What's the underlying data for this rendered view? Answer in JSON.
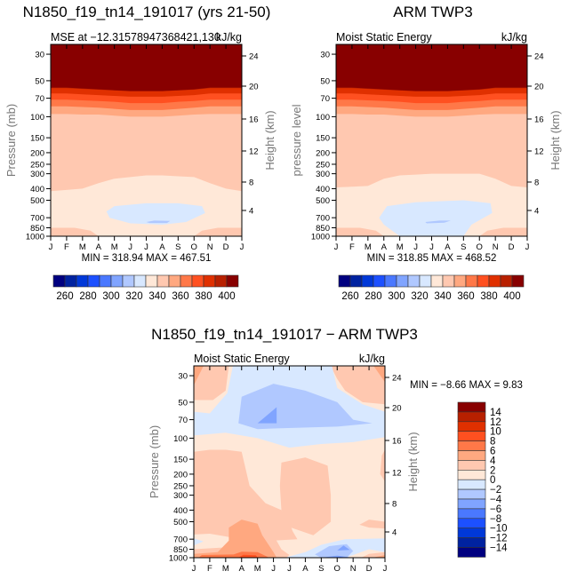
{
  "colors": [
    "#000080",
    "#0022a0",
    "#0038d8",
    "#1c50ff",
    "#4a78ff",
    "#80a4ff",
    "#b0c8ff",
    "#d8e8ff",
    "#ffe8d8",
    "#ffc8b0",
    "#ffa880",
    "#ff7848",
    "#ff5020",
    "#e03000",
    "#b82000",
    "#880000"
  ],
  "chart_data": [
    {
      "type": "heatmap",
      "title": "N1850_f19_tn14_191017 (yrs 21-50)",
      "subtitle_left": "MSE at −12.31578947368421,130",
      "subtitle_right": "kJ/kg",
      "ylabel": "Pressure (mb)",
      "ylabel_right": "Height (km)",
      "x_ticks": [
        "J",
        "F",
        "M",
        "A",
        "M",
        "J",
        "J",
        "A",
        "S",
        "O",
        "N",
        "D",
        "J"
      ],
      "y_ticks": [
        30,
        50,
        70,
        100,
        150,
        200,
        250,
        300,
        400,
        500,
        700,
        850,
        1000
      ],
      "y_ticks_right": [
        24,
        20,
        16,
        12,
        8,
        4
      ],
      "stats": "MIN = 318.94  MAX = 467.51",
      "min": 318.94,
      "max": 467.51,
      "colorbar": {
        "levels": [
          260,
          270,
          280,
          290,
          300,
          310,
          320,
          330,
          340,
          350,
          360,
          370,
          380,
          390,
          400
        ],
        "labels": [
          "260",
          "280",
          "300",
          "320",
          "340",
          "360",
          "380",
          "400"
        ]
      }
    },
    {
      "type": "heatmap",
      "title": "ARM TWP3",
      "subtitle_left": "Moist Static Energy",
      "subtitle_right": "kJ/kg",
      "ylabel": "pressure level",
      "ylabel_right": "Height (km)",
      "x_ticks": [
        "J",
        "F",
        "M",
        "A",
        "M",
        "J",
        "J",
        "A",
        "S",
        "O",
        "N",
        "D",
        "J"
      ],
      "y_ticks": [
        30,
        50,
        70,
        100,
        150,
        200,
        250,
        300,
        400,
        500,
        700,
        850,
        1000
      ],
      "y_ticks_right": [
        24,
        20,
        16,
        12,
        8,
        4
      ],
      "stats": "MIN = 318.85  MAX = 468.52",
      "min": 318.85,
      "max": 468.52,
      "colorbar": {
        "levels": [
          260,
          270,
          280,
          290,
          300,
          310,
          320,
          330,
          340,
          350,
          360,
          370,
          380,
          390,
          400
        ],
        "labels": [
          "260",
          "280",
          "300",
          "320",
          "340",
          "360",
          "380",
          "400"
        ]
      }
    },
    {
      "type": "heatmap",
      "title": "N1850_f19_tn14_191017 − ARM TWP3",
      "subtitle_left": "Moist Static Energy",
      "subtitle_right": "kJ/kg",
      "ylabel": "Pressure (mb)",
      "ylabel_right": "Height (km)",
      "x_ticks": [
        "J",
        "F",
        "M",
        "A",
        "M",
        "J",
        "J",
        "A",
        "S",
        "O",
        "N",
        "D",
        "J"
      ],
      "y_ticks": [
        30,
        50,
        70,
        100,
        150,
        200,
        250,
        300,
        400,
        500,
        700,
        850,
        1000
      ],
      "y_ticks_right": [
        24,
        20,
        16,
        12,
        8,
        4
      ],
      "stats": "MIN =   −8.66 MAX =    9.83",
      "min": -8.66,
      "max": 9.83,
      "colorbar": {
        "levels": [
          14,
          12,
          10,
          8,
          6,
          4,
          2,
          0,
          -2,
          -4,
          -6,
          -8,
          -10,
          -12,
          -14
        ],
        "labels": [
          "14",
          "12",
          "10",
          "8",
          "6",
          "4",
          "2",
          "0",
          "−2",
          "−4",
          "−6",
          "−8",
          "−10",
          "−12",
          "−14"
        ]
      }
    }
  ]
}
